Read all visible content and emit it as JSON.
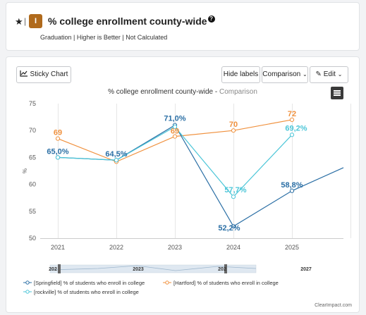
{
  "header": {
    "star_icon": "star-icon",
    "badge_letter": "I",
    "title": "% college enrollment county-wide",
    "subtitle": "Graduation | Higher is Better | Not Calculated"
  },
  "toolbar": {
    "sticky_label": "Sticky Chart",
    "hide_labels": "Hide labels",
    "comparison": "Comparison",
    "edit": "Edit"
  },
  "chart_title": {
    "main": "% college enrollment county-wide",
    "suffix": "Comparison"
  },
  "navigator_labels": [
    "202",
    "2023",
    "202",
    "2027"
  ],
  "legend": [
    "[Springfield] % of students who enroll in college",
    "[Hartford] % of students who enroll in college",
    "[rockville] % of students who enroll in college"
  ],
  "footer": "ClearImpact.com",
  "chart_data": {
    "type": "line",
    "title": "% college enrollment county-wide - Comparison",
    "x": [
      "2021",
      "2022",
      "2023",
      "2024",
      "2025"
    ],
    "xlabel": "",
    "ylabel": "%",
    "ylim": [
      50,
      75
    ],
    "yticks": [
      50,
      55,
      60,
      65,
      70,
      75
    ],
    "grid": "vertical",
    "legend_position": "bottom",
    "series": [
      {
        "name": "[Springfield] % of students who enroll in college",
        "color": "#2b6fa5",
        "values": [
          65.0,
          64.5,
          71.0,
          52.2,
          58.8
        ],
        "extension": 63.1,
        "labels": [
          "65,0%",
          "64,5%",
          "71,0%",
          "52,2%",
          "58,8%"
        ]
      },
      {
        "name": "[Hartford] % of students who enroll in college",
        "color": "#f0913e",
        "values": [
          68.5,
          64.2,
          68.9,
          70.0,
          72.0
        ],
        "labels": [
          "69",
          "",
          "69",
          "70",
          "72"
        ]
      },
      {
        "name": "[rockville] % of students who enroll in college",
        "color": "#4cc6d8",
        "values": [
          65.0,
          64.5,
          70.7,
          57.7,
          69.2
        ],
        "labels": [
          "",
          "",
          "",
          "57,7%",
          "69,2%"
        ]
      }
    ]
  }
}
